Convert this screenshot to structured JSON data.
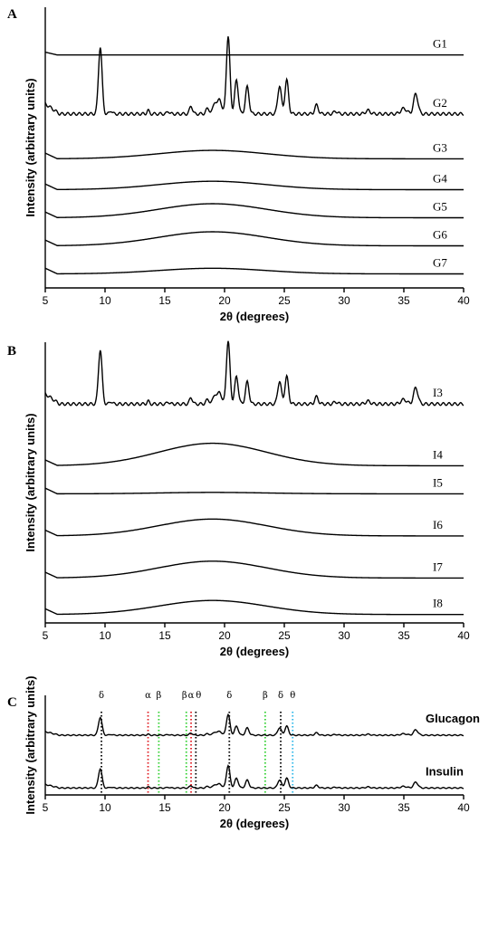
{
  "chart_data": [
    {
      "panel": "A",
      "type": "line",
      "xlabel": "2θ (degrees)",
      "ylabel": "Intensity (arbitrary units)",
      "xlim": [
        5,
        40
      ],
      "xticks": [
        "5",
        "10",
        "15",
        "20",
        "25",
        "30",
        "35",
        "40"
      ],
      "series": [
        {
          "name": "G1",
          "profile": "flat",
          "baseline": 0.83
        },
        {
          "name": "G2",
          "profile": "crystalline",
          "baseline": 0.62,
          "scale": 0.8
        },
        {
          "name": "G3",
          "profile": "amorphous",
          "baseline": 0.46,
          "hump": 0.03
        },
        {
          "name": "G4",
          "profile": "amorphous",
          "baseline": 0.35,
          "hump": 0.03
        },
        {
          "name": "G5",
          "profile": "amorphous",
          "baseline": 0.25,
          "hump": 0.05
        },
        {
          "name": "G6",
          "profile": "amorphous",
          "baseline": 0.15,
          "hump": 0.05
        },
        {
          "name": "G7",
          "profile": "amorphous",
          "baseline": 0.05,
          "hump": 0.02
        }
      ]
    },
    {
      "panel": "B",
      "type": "line",
      "xlabel": "2θ (degrees)",
      "ylabel": "Intensity (arbitrary units)",
      "xlim": [
        5,
        40
      ],
      "xticks": [
        "5",
        "10",
        "15",
        "20",
        "25",
        "30",
        "35",
        "40"
      ],
      "series": [
        {
          "name": "I3",
          "profile": "crystalline",
          "baseline": 0.78,
          "scale": 0.65
        },
        {
          "name": "I4",
          "profile": "amorphous",
          "baseline": 0.56,
          "hump": 0.08
        },
        {
          "name": "I5",
          "profile": "amorphous",
          "baseline": 0.46,
          "hump": 0.005
        },
        {
          "name": "I6",
          "profile": "amorphous",
          "baseline": 0.31,
          "hump": 0.06
        },
        {
          "name": "I7",
          "profile": "amorphous",
          "baseline": 0.16,
          "hump": 0.06
        },
        {
          "name": "I8",
          "profile": "amorphous",
          "baseline": 0.03,
          "hump": 0.05
        }
      ]
    },
    {
      "panel": "C",
      "type": "line",
      "xlabel": "2θ (degrees)",
      "ylabel": "Intensity (arbitrary units)",
      "xlim": [
        5,
        40
      ],
      "xticks": [
        "5",
        "10",
        "15",
        "20",
        "25",
        "30",
        "35",
        "40"
      ],
      "series": [
        {
          "name": "Glucagon",
          "profile": "crystalline",
          "baseline": 0.6,
          "scale": 0.6
        },
        {
          "name": "Insulin",
          "profile": "crystalline",
          "baseline": 0.07,
          "scale": 0.65
        }
      ],
      "markers": [
        {
          "label": "δ",
          "x": 9.7,
          "color": "#000000"
        },
        {
          "label": "α",
          "x": 13.6,
          "color": "#e0191f"
        },
        {
          "label": "β",
          "x": 14.5,
          "color": "#2fd02f"
        },
        {
          "label": "β",
          "x": 16.8,
          "color": "#2fd02f"
        },
        {
          "label": "α",
          "x": 17.2,
          "color": "#e0191f"
        },
        {
          "label": "θ",
          "x": 17.6,
          "color": "#000000"
        },
        {
          "label": "δ",
          "x": 20.4,
          "color": "#000000"
        },
        {
          "label": "β",
          "x": 23.4,
          "color": "#2fd02f"
        },
        {
          "label": "δ",
          "x": 24.7,
          "color": "#000000"
        },
        {
          "label": "θ",
          "x": 25.7,
          "color": "#29b6e8"
        }
      ]
    }
  ],
  "peaks": [
    [
      9.6,
      1.0,
      0.15
    ],
    [
      10.5,
      0.05,
      0.1
    ],
    [
      13.6,
      0.05,
      0.1
    ],
    [
      15.3,
      0.04,
      0.1
    ],
    [
      17.2,
      0.12,
      0.12
    ],
    [
      18.6,
      0.08,
      0.15
    ],
    [
      19.2,
      0.18,
      0.15
    ],
    [
      19.6,
      0.22,
      0.15
    ],
    [
      20.3,
      1.15,
      0.15
    ],
    [
      21.0,
      0.5,
      0.15
    ],
    [
      21.9,
      0.4,
      0.15
    ],
    [
      24.6,
      0.42,
      0.15
    ],
    [
      25.2,
      0.5,
      0.15
    ],
    [
      27.7,
      0.13,
      0.15
    ],
    [
      29.3,
      0.04,
      0.15
    ],
    [
      32.0,
      0.05,
      0.2
    ],
    [
      35.0,
      0.08,
      0.25
    ],
    [
      36.0,
      0.3,
      0.18
    ]
  ],
  "colors": {
    "ink": "#000000"
  }
}
